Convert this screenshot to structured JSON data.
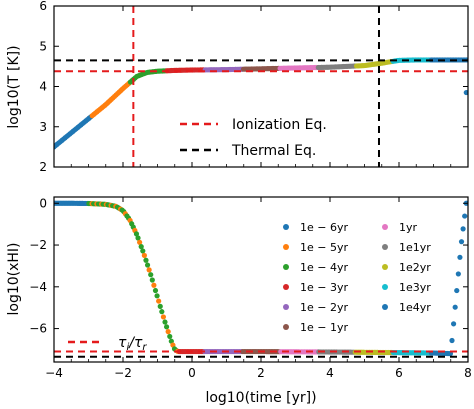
{
  "chart_data": [
    {
      "type": "scatter",
      "xlabel": "",
      "ylabel": "log10(T [K])",
      "xlim": [
        -4,
        8
      ],
      "ylim": [
        2,
        6
      ],
      "x_ticks": [
        -4,
        -2,
        0,
        2,
        4,
        6,
        8
      ],
      "y_ticks": [
        2,
        3,
        4,
        5,
        6
      ],
      "y_tick_labels": [
        "2",
        "3",
        "4",
        "5",
        "6"
      ],
      "grid": false,
      "legend_position": "lower-center",
      "reference_lines": [
        {
          "name": "Ionization Eq.",
          "orientation": "vertical",
          "value": -1.7,
          "color": "#e41a1c",
          "style": "dashed"
        },
        {
          "name": "Ionization Eq.",
          "orientation": "horizontal",
          "value": 4.38,
          "color": "#e41a1c",
          "style": "dashed"
        },
        {
          "name": "Thermal Eq.",
          "orientation": "vertical",
          "value": 5.42,
          "color": "#000000",
          "style": "dashed"
        },
        {
          "name": "Thermal Eq.",
          "orientation": "horizontal",
          "value": 4.65,
          "color": "#000000",
          "style": "dashed"
        }
      ],
      "legend": [
        {
          "label": "Ionization Eq.",
          "color": "#e41a1c"
        },
        {
          "label": "Thermal Eq.",
          "color": "#000000"
        }
      ],
      "curve": {
        "x": [
          -4.0,
          -3.5,
          -3.0,
          -2.5,
          -2.0,
          -1.6,
          -1.3,
          -1.0,
          -0.5,
          0.0,
          1.0,
          2.0,
          3.0,
          4.0,
          5.0,
          5.5,
          6.0,
          6.5,
          7.0,
          7.5,
          8.0
        ],
        "y": [
          2.5,
          2.85,
          3.2,
          3.55,
          3.95,
          4.25,
          4.35,
          4.38,
          4.4,
          4.41,
          4.42,
          4.44,
          4.46,
          4.48,
          4.52,
          4.58,
          4.65,
          4.66,
          4.66,
          4.66,
          4.66
        ]
      },
      "outlier": {
        "x": 7.95,
        "y": 3.85
      }
    },
    {
      "type": "scatter",
      "xlabel": "log10(time [yr])",
      "ylabel": "log10(xHI)",
      "xlim": [
        -4,
        8
      ],
      "ylim": [
        -7.6,
        0.3
      ],
      "x_ticks": [
        -4,
        -2,
        0,
        2,
        4,
        6,
        8
      ],
      "x_tick_labels": [
        "−4",
        "−2",
        "0",
        "2",
        "4",
        "6",
        "8"
      ],
      "y_ticks": [
        0,
        -2,
        -4,
        -6
      ],
      "y_tick_labels": [
        "0",
        "−2",
        "−4",
        "−6"
      ],
      "grid": false,
      "legend_position": "right",
      "reference_lines": [
        {
          "name": "τi/τr",
          "orientation": "horizontal",
          "value": -7.1,
          "color": "#e41a1c",
          "style": "dashed"
        },
        {
          "name": "",
          "orientation": "horizontal",
          "value": -7.35,
          "color": "#000000",
          "style": "dashed"
        }
      ],
      "ratio_label": {
        "tau": "τ",
        "i": "i",
        "slash": "/",
        "r": "r"
      },
      "series": [
        {
          "name": "1e − 6yr",
          "color": "#1f77b4"
        },
        {
          "name": "1e − 5yr",
          "color": "#ff7f0e"
        },
        {
          "name": "1e − 4yr",
          "color": "#2ca02c"
        },
        {
          "name": "1e − 3yr",
          "color": "#d62728"
        },
        {
          "name": "1e − 2yr",
          "color": "#9467bd"
        },
        {
          "name": "1e − 1yr",
          "color": "#8c564b"
        },
        {
          "name": "1yr",
          "color": "#e377c2"
        },
        {
          "name": "1e1yr",
          "color": "#7f7f7f"
        },
        {
          "name": "1e2yr",
          "color": "#bcbd22"
        },
        {
          "name": "1e3yr",
          "color": "#17becf"
        },
        {
          "name": "1e4yr",
          "color": "#1f77b4"
        }
      ],
      "curve": {
        "x": [
          -4.0,
          -3.5,
          -3.0,
          -2.5,
          -2.2,
          -2.0,
          -1.8,
          -1.6,
          -1.4,
          -1.2,
          -1.0,
          -0.8,
          -0.6,
          -0.5,
          -0.4,
          0.0,
          2.0,
          4.0,
          6.0,
          7.0,
          7.5,
          7.8,
          7.95
        ],
        "y": [
          0.0,
          0.0,
          -0.01,
          -0.05,
          -0.15,
          -0.35,
          -0.8,
          -1.5,
          -2.4,
          -3.4,
          -4.5,
          -5.6,
          -6.6,
          -7.0,
          -7.1,
          -7.1,
          -7.1,
          -7.12,
          -7.15,
          -7.17,
          -7.2,
          -2.0,
          0.0
        ]
      }
    }
  ]
}
